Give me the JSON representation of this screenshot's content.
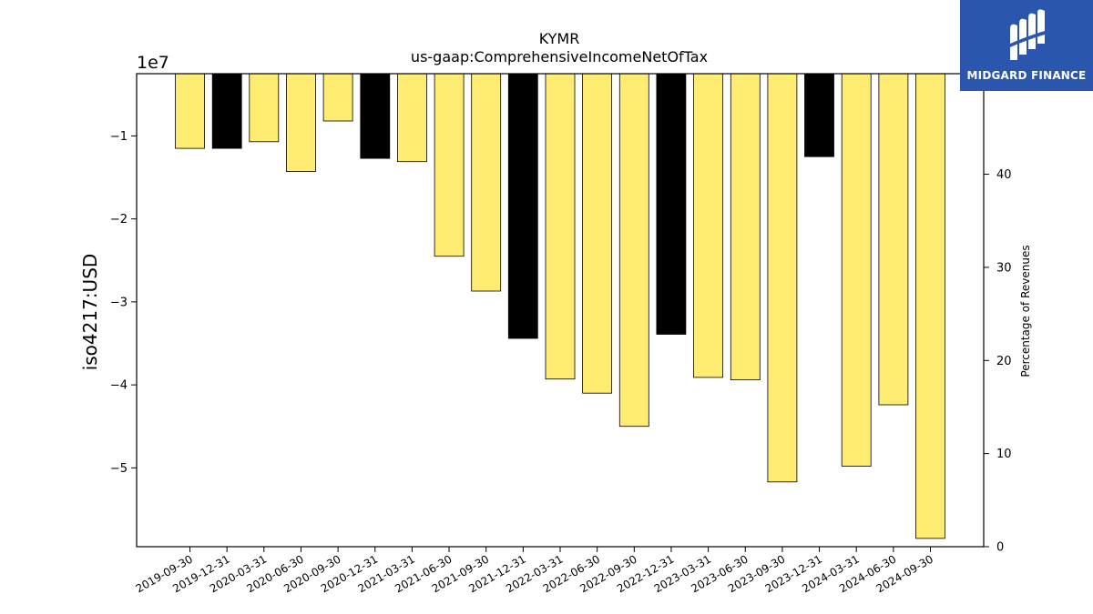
{
  "chart_data": {
    "type": "bar",
    "title": "KYMR",
    "subtitle": "us-gaap:ComprehensiveIncomeNetOfTax",
    "ylabel": "iso4217:USD",
    "y_offset_text": "1e7",
    "y2label": "Percentage of Revenues",
    "categories": [
      "2019-09-30",
      "2019-12-31",
      "2020-03-31",
      "2020-06-30",
      "2020-09-30",
      "2020-12-31",
      "2021-03-31",
      "2021-06-30",
      "2021-09-30",
      "2021-12-31",
      "2022-03-31",
      "2022-06-30",
      "2022-09-30",
      "2022-12-31",
      "2023-03-31",
      "2023-06-30",
      "2023-09-30",
      "2023-12-31",
      "2024-03-31",
      "2024-06-30",
      "2024-09-30"
    ],
    "values": [
      -11500000,
      -11500000,
      -10700000,
      -14300000,
      -8200000,
      -12700000,
      -13100000,
      -24500000,
      -28700000,
      -34400000,
      -39300000,
      -41000000,
      -45000000,
      -33900000,
      -39100000,
      -39400000,
      -51700000,
      -12500000,
      -49800000,
      -42400000,
      -58500000
    ],
    "annual": [
      false,
      true,
      false,
      false,
      false,
      true,
      false,
      false,
      false,
      true,
      false,
      false,
      false,
      true,
      false,
      false,
      false,
      true,
      false,
      false,
      false
    ],
    "colors": {
      "quarterly": "#ffec73",
      "annual": "#000000"
    },
    "ylim": [
      -59500000,
      -2500000
    ],
    "yticks": [
      -10000000,
      -20000000,
      -30000000,
      -40000000,
      -50000000
    ],
    "ytick_labels": [
      "−1",
      "−2",
      "−3",
      "−4",
      "−5"
    ],
    "y2lim": [
      0,
      50.8
    ],
    "y2ticks": [
      0,
      10,
      20,
      30,
      40
    ],
    "y2tick_labels": [
      "0",
      "10",
      "20",
      "30",
      "40"
    ],
    "grid": false,
    "legend": "none"
  },
  "logo": {
    "text": "MIDGARD FINANCE",
    "bg": "#2a56ad"
  }
}
